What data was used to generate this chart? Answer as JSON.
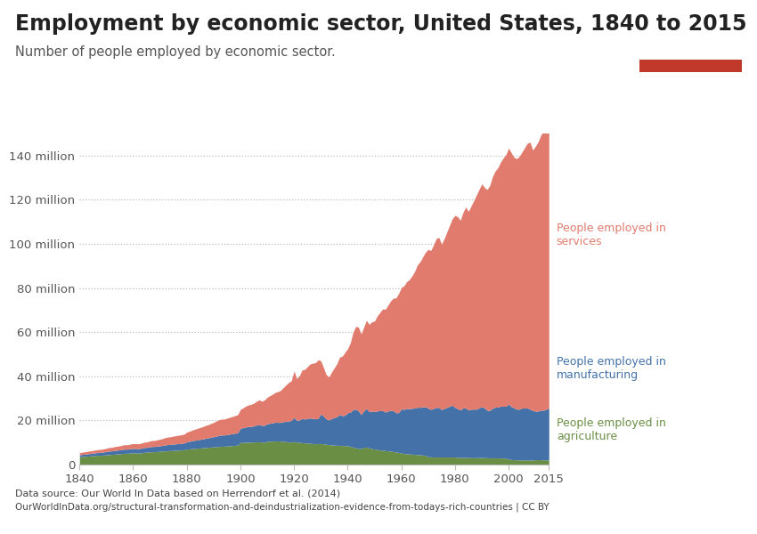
{
  "title": "Employment by economic sector, United States, 1840 to 2015",
  "subtitle": "Number of people employed by economic sector.",
  "background_color": "#ffffff",
  "title_fontsize": 17,
  "subtitle_fontsize": 10.5,
  "datasource": "Data source: Our World In Data based on Herrendorf et al. (2014)",
  "url": "OurWorldInData.org/structural-transformation-and-deindustrialization-evidence-from-todays-rich-countries | CC BY",
  "colors": {
    "agriculture": "#6b8e45",
    "manufacturing": "#4472a8",
    "services": "#e07b6e"
  },
  "labels": {
    "services": "People employed in\nservices",
    "manufacturing": "People employed in\nmanufacturing",
    "agriculture": "People employed in\nagriculture"
  },
  "years": [
    1840,
    1841,
    1842,
    1843,
    1844,
    1845,
    1846,
    1847,
    1848,
    1849,
    1850,
    1851,
    1852,
    1853,
    1854,
    1855,
    1856,
    1857,
    1858,
    1859,
    1860,
    1861,
    1862,
    1863,
    1864,
    1865,
    1866,
    1867,
    1868,
    1869,
    1870,
    1871,
    1872,
    1873,
    1874,
    1875,
    1876,
    1877,
    1878,
    1879,
    1880,
    1881,
    1882,
    1883,
    1884,
    1885,
    1886,
    1887,
    1888,
    1889,
    1890,
    1891,
    1892,
    1893,
    1894,
    1895,
    1896,
    1897,
    1898,
    1899,
    1900,
    1901,
    1902,
    1903,
    1904,
    1905,
    1906,
    1907,
    1908,
    1909,
    1910,
    1911,
    1912,
    1913,
    1914,
    1915,
    1916,
    1917,
    1918,
    1919,
    1920,
    1921,
    1922,
    1923,
    1924,
    1925,
    1926,
    1927,
    1928,
    1929,
    1930,
    1931,
    1932,
    1933,
    1934,
    1935,
    1936,
    1937,
    1938,
    1939,
    1940,
    1941,
    1942,
    1943,
    1944,
    1945,
    1946,
    1947,
    1948,
    1949,
    1950,
    1951,
    1952,
    1953,
    1954,
    1955,
    1956,
    1957,
    1958,
    1959,
    1960,
    1961,
    1962,
    1963,
    1964,
    1965,
    1966,
    1967,
    1968,
    1969,
    1970,
    1971,
    1972,
    1973,
    1974,
    1975,
    1976,
    1977,
    1978,
    1979,
    1980,
    1981,
    1982,
    1983,
    1984,
    1985,
    1986,
    1987,
    1988,
    1989,
    1990,
    1991,
    1992,
    1993,
    1994,
    1995,
    1996,
    1997,
    1998,
    1999,
    2000,
    2001,
    2002,
    2003,
    2004,
    2005,
    2006,
    2007,
    2008,
    2009,
    2010,
    2011,
    2012,
    2013,
    2014,
    2015
  ],
  "agriculture": [
    3.5,
    3.6,
    3.7,
    3.8,
    3.9,
    4.0,
    4.1,
    4.2,
    4.2,
    4.3,
    4.4,
    4.5,
    4.6,
    4.7,
    4.8,
    4.9,
    5.0,
    5.1,
    5.1,
    5.2,
    5.3,
    5.3,
    5.2,
    5.3,
    5.5,
    5.6,
    5.7,
    5.8,
    5.8,
    5.9,
    6.0,
    6.1,
    6.2,
    6.3,
    6.3,
    6.4,
    6.5,
    6.5,
    6.6,
    6.7,
    7.0,
    7.1,
    7.2,
    7.3,
    7.4,
    7.5,
    7.6,
    7.7,
    7.8,
    7.9,
    8.0,
    8.1,
    8.2,
    8.3,
    8.3,
    8.4,
    8.5,
    8.6,
    8.7,
    8.8,
    10.0,
    10.0,
    10.1,
    10.1,
    10.2,
    10.2,
    10.3,
    10.3,
    10.2,
    10.1,
    10.5,
    10.6,
    10.6,
    10.7,
    10.7,
    10.6,
    10.5,
    10.4,
    10.2,
    10.2,
    10.4,
    10.2,
    10.0,
    9.9,
    9.8,
    9.7,
    9.6,
    9.5,
    9.4,
    9.5,
    9.5,
    9.4,
    9.2,
    9.0,
    8.9,
    8.8,
    8.7,
    8.7,
    8.6,
    8.6,
    8.5,
    8.2,
    7.9,
    7.6,
    7.3,
    7.2,
    7.8,
    7.9,
    7.5,
    7.2,
    7.0,
    6.8,
    6.6,
    6.5,
    6.3,
    6.2,
    6.1,
    5.9,
    5.7,
    5.5,
    5.2,
    5.0,
    4.9,
    4.8,
    4.7,
    4.6,
    4.5,
    4.4,
    4.3,
    4.2,
    3.5,
    3.5,
    3.4,
    3.4,
    3.4,
    3.4,
    3.4,
    3.4,
    3.4,
    3.4,
    3.4,
    3.3,
    3.2,
    3.2,
    3.2,
    3.2,
    3.1,
    3.1,
    3.1,
    3.2,
    3.2,
    3.1,
    3.1,
    3.0,
    3.0,
    3.0,
    3.0,
    3.0,
    2.9,
    2.9,
    2.4,
    2.3,
    2.2,
    2.1,
    2.1,
    2.1,
    2.1,
    2.1,
    2.1,
    2.0,
    2.2,
    2.2,
    2.2,
    2.1,
    2.1,
    2.1
  ],
  "manufacturing": [
    0.9,
    1.0,
    1.0,
    1.1,
    1.1,
    1.2,
    1.2,
    1.3,
    1.3,
    1.4,
    1.5,
    1.6,
    1.6,
    1.7,
    1.7,
    1.8,
    1.9,
    1.9,
    1.9,
    2.0,
    2.0,
    2.0,
    2.0,
    2.1,
    2.2,
    2.2,
    2.3,
    2.4,
    2.4,
    2.5,
    2.5,
    2.6,
    2.7,
    2.8,
    2.8,
    2.9,
    2.9,
    3.0,
    3.0,
    3.1,
    3.3,
    3.4,
    3.6,
    3.7,
    3.8,
    3.9,
    4.0,
    4.2,
    4.3,
    4.5,
    4.6,
    4.8,
    5.0,
    5.1,
    5.1,
    5.2,
    5.3,
    5.4,
    5.5,
    5.6,
    6.5,
    6.7,
    6.9,
    7.1,
    7.1,
    7.3,
    7.6,
    7.8,
    7.5,
    7.7,
    8.0,
    8.1,
    8.3,
    8.5,
    8.4,
    8.5,
    8.9,
    9.2,
    9.5,
    9.8,
    11.0,
    9.8,
    10.2,
    11.0,
    10.8,
    11.2,
    11.5,
    11.4,
    11.3,
    11.5,
    13.5,
    12.5,
    11.5,
    11.2,
    12.0,
    12.5,
    13.0,
    14.0,
    13.5,
    13.8,
    15.0,
    15.5,
    17.0,
    17.5,
    17.0,
    15.5,
    16.5,
    17.5,
    16.5,
    17.0,
    17.0,
    17.5,
    17.8,
    18.0,
    17.5,
    18.0,
    18.5,
    18.5,
    17.8,
    18.0,
    20.0,
    20.0,
    20.5,
    20.5,
    20.8,
    21.0,
    21.5,
    21.5,
    21.8,
    22.0,
    22.0,
    21.5,
    22.0,
    22.5,
    22.5,
    21.5,
    22.0,
    22.5,
    23.0,
    23.5,
    22.5,
    22.0,
    21.5,
    22.5,
    22.5,
    21.5,
    22.0,
    22.0,
    22.0,
    22.5,
    23.0,
    22.5,
    21.5,
    21.5,
    22.5,
    23.0,
    23.0,
    23.5,
    23.5,
    23.5,
    25.0,
    24.0,
    23.5,
    23.0,
    23.0,
    23.5,
    23.5,
    23.5,
    23.0,
    22.5,
    22.0,
    22.0,
    22.5,
    22.5,
    23.0,
    23.5
  ],
  "services": [
    1.0,
    1.0,
    1.1,
    1.1,
    1.2,
    1.2,
    1.3,
    1.3,
    1.4,
    1.4,
    1.5,
    1.6,
    1.6,
    1.7,
    1.8,
    1.8,
    1.9,
    2.0,
    2.0,
    2.1,
    2.2,
    2.2,
    2.2,
    2.3,
    2.4,
    2.4,
    2.6,
    2.7,
    2.7,
    2.8,
    3.0,
    3.1,
    3.3,
    3.4,
    3.5,
    3.6,
    3.7,
    3.8,
    3.9,
    4.0,
    4.4,
    4.6,
    4.8,
    5.0,
    5.2,
    5.4,
    5.6,
    5.8,
    6.0,
    6.2,
    6.5,
    6.8,
    7.1,
    7.2,
    7.2,
    7.4,
    7.6,
    7.8,
    8.0,
    8.2,
    8.5,
    9.0,
    9.5,
    9.8,
    10.0,
    10.3,
    10.8,
    11.2,
    11.0,
    11.5,
    12.0,
    12.5,
    13.0,
    13.5,
    14.0,
    14.5,
    15.5,
    16.5,
    17.5,
    18.0,
    21.0,
    19.0,
    20.0,
    22.0,
    22.5,
    23.5,
    24.5,
    25.0,
    25.5,
    26.5,
    24.0,
    22.0,
    20.0,
    19.5,
    21.0,
    22.5,
    24.0,
    26.0,
    27.0,
    28.5,
    29.0,
    31.5,
    35.0,
    37.5,
    38.0,
    36.5,
    38.0,
    40.0,
    39.5,
    40.5,
    41.0,
    43.0,
    44.5,
    46.0,
    46.5,
    48.0,
    49.5,
    51.0,
    52.0,
    54.0,
    55.0,
    56.0,
    57.5,
    58.5,
    60.0,
    62.0,
    64.5,
    66.0,
    68.0,
    70.0,
    72.0,
    72.0,
    74.0,
    76.5,
    77.0,
    75.0,
    77.0,
    79.5,
    82.0,
    84.5,
    87.0,
    87.0,
    86.0,
    88.5,
    91.0,
    90.0,
    92.0,
    94.5,
    97.0,
    99.0,
    101.0,
    100.0,
    100.0,
    102.0,
    105.0,
    107.0,
    108.5,
    110.5,
    112.5,
    114.0,
    116.0,
    115.0,
    113.5,
    113.5,
    114.5,
    116.0,
    118.0,
    120.0,
    121.0,
    118.0,
    120.0,
    122.0,
    124.5,
    126.5,
    129.5,
    132.0
  ],
  "ylim": [
    0,
    150000000
  ],
  "yticks": [
    0,
    20000000,
    40000000,
    60000000,
    80000000,
    100000000,
    120000000,
    140000000
  ],
  "ytick_labels": [
    "0",
    "20 million",
    "40 million",
    "60 million",
    "80 million",
    "100 million",
    "120 million",
    "140 million"
  ],
  "xticks": [
    1840,
    1860,
    1880,
    1900,
    1920,
    1940,
    1960,
    1980,
    2000,
    2015
  ]
}
